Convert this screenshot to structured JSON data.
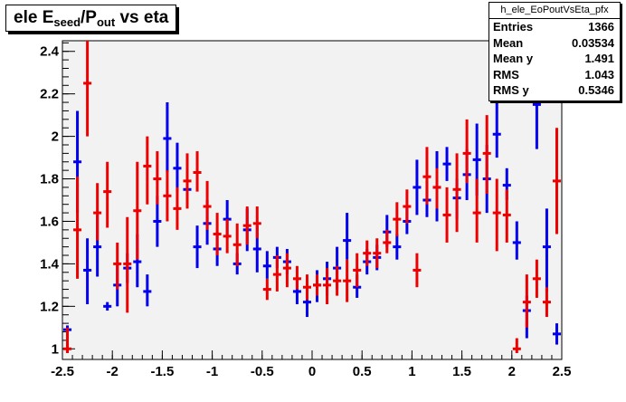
{
  "title": {
    "prefix": "ele E",
    "sub1": "seed",
    "mid": "/P",
    "sub2": "out",
    "suffix": " vs eta"
  },
  "stats": {
    "name": "h_ele_EoPoutVsEta_pfx",
    "rows": [
      {
        "label": "Entries",
        "value": "1366"
      },
      {
        "label": "Mean",
        "value": "0.03534"
      },
      {
        "label": "Mean y",
        "value": "1.491"
      },
      {
        "label": "RMS",
        "value": "1.043"
      },
      {
        "label": "RMS y",
        "value": "0.5346"
      }
    ]
  },
  "colors": {
    "plot_bg": "#f2f2f2",
    "blue_series": "#0000ee",
    "red_series": "#ee0000",
    "axis": "#000000"
  },
  "chart_data": {
    "type": "scatter",
    "xlim": [
      -2.5,
      2.5
    ],
    "ylim": [
      0.95,
      2.45
    ],
    "xticks": [
      -2.5,
      -2,
      -1.5,
      -1,
      -0.5,
      0,
      0.5,
      1,
      1.5,
      2,
      2.5
    ],
    "xtick_labels": [
      "-2.5",
      "-2",
      "-1.5",
      "-1",
      "-0.5",
      "0",
      "0.5",
      "1",
      "1.5",
      "2",
      "2.5"
    ],
    "yticks": [
      1,
      1.2,
      1.4,
      1.6,
      1.8,
      2,
      2.2,
      2.4
    ],
    "ytick_labels": [
      "1",
      "1.2",
      "1.4",
      "1.6",
      "1.8",
      "2",
      "2.2",
      "2.4"
    ],
    "bin_half_width": 0.05,
    "series": [
      {
        "color": "#0000ee",
        "points": [
          [
            -2.45,
            1.09,
            1.08,
            1.11
          ],
          [
            -2.35,
            1.88,
            1.64,
            2.12
          ],
          [
            -2.25,
            1.37,
            1.21,
            1.52
          ],
          [
            -2.15,
            1.48,
            1.34,
            1.63
          ],
          [
            -2.05,
            1.2,
            1.18,
            1.22
          ],
          [
            -1.95,
            1.3,
            1.2,
            1.4
          ],
          [
            -1.85,
            1.38,
            1.31,
            1.45
          ],
          [
            -1.75,
            1.41,
            1.29,
            1.54
          ],
          [
            -1.65,
            1.27,
            1.2,
            1.35
          ],
          [
            -1.55,
            1.6,
            1.48,
            1.72
          ],
          [
            -1.45,
            1.99,
            1.83,
            2.16
          ],
          [
            -1.35,
            1.85,
            1.74,
            1.97
          ],
          [
            -1.25,
            1.75,
            1.67,
            1.83
          ],
          [
            -1.15,
            1.48,
            1.38,
            1.58
          ],
          [
            -1.05,
            1.59,
            1.49,
            1.7
          ],
          [
            -0.95,
            1.47,
            1.39,
            1.55
          ],
          [
            -0.85,
            1.61,
            1.52,
            1.7
          ],
          [
            -0.75,
            1.4,
            1.35,
            1.45
          ],
          [
            -0.65,
            1.56,
            1.46,
            1.66
          ],
          [
            -0.55,
            1.47,
            1.36,
            1.58
          ],
          [
            -0.45,
            1.39,
            1.33,
            1.46
          ],
          [
            -0.35,
            1.43,
            1.38,
            1.48
          ],
          [
            -0.25,
            1.41,
            1.35,
            1.47
          ],
          [
            -0.15,
            1.27,
            1.21,
            1.33
          ],
          [
            -0.05,
            1.22,
            1.15,
            1.29
          ],
          [
            0.05,
            1.3,
            1.22,
            1.37
          ],
          [
            0.15,
            1.33,
            1.25,
            1.41
          ],
          [
            0.25,
            1.38,
            1.28,
            1.48
          ],
          [
            0.35,
            1.51,
            1.42,
            1.64
          ],
          [
            0.45,
            1.29,
            1.24,
            1.35
          ],
          [
            0.55,
            1.41,
            1.35,
            1.47
          ],
          [
            0.65,
            1.43,
            1.37,
            1.49
          ],
          [
            0.75,
            1.55,
            1.48,
            1.63
          ],
          [
            0.85,
            1.48,
            1.42,
            1.54
          ],
          [
            0.95,
            1.6,
            1.54,
            1.67
          ],
          [
            1.05,
            1.76,
            1.63,
            1.89
          ],
          [
            1.15,
            1.7,
            1.62,
            1.79
          ],
          [
            1.25,
            1.76,
            1.6,
            1.93
          ],
          [
            1.35,
            1.87,
            1.79,
            1.95
          ],
          [
            1.45,
            1.71,
            1.61,
            1.8
          ],
          [
            1.55,
            1.82,
            1.7,
            1.94
          ],
          [
            1.65,
            1.89,
            1.72,
            2.06
          ],
          [
            1.75,
            1.8,
            1.64,
            1.96
          ],
          [
            1.85,
            2.01,
            1.9,
            2.2
          ],
          [
            1.95,
            1.77,
            1.7,
            1.85
          ],
          [
            2.05,
            1.5,
            1.42,
            1.6
          ],
          [
            2.15,
            1.18,
            1.05,
            1.25
          ],
          [
            2.25,
            2.15,
            1.94,
            2.35
          ],
          [
            2.35,
            1.48,
            1.27,
            1.66
          ],
          [
            2.45,
            1.07,
            1.02,
            1.12
          ]
        ]
      },
      {
        "color": "#ee0000",
        "points": [
          [
            -2.45,
            1.0,
            0.98,
            1.1
          ],
          [
            -2.35,
            1.56,
            1.33,
            1.81
          ],
          [
            -2.25,
            2.25,
            2.0,
            2.47
          ],
          [
            -2.15,
            1.64,
            1.51,
            1.78
          ],
          [
            -2.05,
            1.74,
            1.57,
            1.88
          ],
          [
            -1.95,
            1.4,
            1.28,
            1.5
          ],
          [
            -1.85,
            1.4,
            1.17,
            1.62
          ],
          [
            -1.75,
            1.65,
            1.42,
            1.88
          ],
          [
            -1.65,
            1.86,
            1.68,
            2.0
          ],
          [
            -1.55,
            1.8,
            1.68,
            1.93
          ],
          [
            -1.45,
            1.72,
            1.6,
            1.84
          ],
          [
            -1.35,
            1.66,
            1.56,
            1.76
          ],
          [
            -1.25,
            1.79,
            1.66,
            1.92
          ],
          [
            -1.15,
            1.83,
            1.74,
            1.93
          ],
          [
            -1.05,
            1.67,
            1.56,
            1.79
          ],
          [
            -0.95,
            1.54,
            1.44,
            1.64
          ],
          [
            -0.85,
            1.53,
            1.45,
            1.61
          ],
          [
            -0.75,
            1.49,
            1.39,
            1.59
          ],
          [
            -0.65,
            1.58,
            1.49,
            1.67
          ],
          [
            -0.55,
            1.59,
            1.52,
            1.67
          ],
          [
            -0.45,
            1.28,
            1.23,
            1.33
          ],
          [
            -0.35,
            1.35,
            1.27,
            1.44
          ],
          [
            -0.25,
            1.38,
            1.29,
            1.45
          ],
          [
            -0.15,
            1.33,
            1.28,
            1.39
          ],
          [
            -0.05,
            1.29,
            1.23,
            1.35
          ],
          [
            0.05,
            1.3,
            1.25,
            1.35
          ],
          [
            0.15,
            1.3,
            1.21,
            1.38
          ],
          [
            0.25,
            1.32,
            1.25,
            1.39
          ],
          [
            0.35,
            1.32,
            1.22,
            1.42
          ],
          [
            0.45,
            1.37,
            1.29,
            1.45
          ],
          [
            0.55,
            1.45,
            1.39,
            1.51
          ],
          [
            0.65,
            1.45,
            1.38,
            1.52
          ],
          [
            0.75,
            1.5,
            1.45,
            1.56
          ],
          [
            0.85,
            1.61,
            1.53,
            1.69
          ],
          [
            0.95,
            1.67,
            1.59,
            1.75
          ],
          [
            1.05,
            1.37,
            1.29,
            1.45
          ],
          [
            1.15,
            1.81,
            1.68,
            1.95
          ],
          [
            1.25,
            1.76,
            1.66,
            1.85
          ],
          [
            1.35,
            1.63,
            1.5,
            1.76
          ],
          [
            1.45,
            1.75,
            1.55,
            1.92
          ],
          [
            1.55,
            1.92,
            1.78,
            2.08
          ],
          [
            1.65,
            1.64,
            1.5,
            1.8
          ],
          [
            1.75,
            1.92,
            1.73,
            2.1
          ],
          [
            1.85,
            1.64,
            1.46,
            1.8
          ],
          [
            1.95,
            1.63,
            1.5,
            1.75
          ],
          [
            2.05,
            1.0,
            0.98,
            1.05
          ],
          [
            2.15,
            1.22,
            1.1,
            1.35
          ],
          [
            2.25,
            1.33,
            1.24,
            1.42
          ],
          [
            2.35,
            1.22,
            1.15,
            1.29
          ],
          [
            2.45,
            1.79,
            1.54,
            2.04
          ]
        ]
      }
    ]
  }
}
